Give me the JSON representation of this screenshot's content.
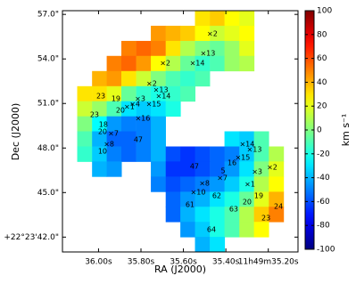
{
  "chart_data": {
    "type": "image",
    "xlabel": "RA (J2000)",
    "ylabel": "Dec (J2000)",
    "colorbar_label": "km s⁻¹",
    "colormap": "jet",
    "clim": [
      -100,
      100
    ],
    "colorbar_ticks": [
      -100,
      -80,
      -60,
      -40,
      -20,
      0,
      20,
      40,
      60,
      80,
      100
    ],
    "xlim": [
      36.17,
      35.06
    ],
    "ylim": [
      41.0,
      57.25
    ],
    "xticks": [
      {
        "value": 36.0,
        "label": "36.00s"
      },
      {
        "value": 35.8,
        "label": "35.80s"
      },
      {
        "value": 35.6,
        "label": "35.60s"
      },
      {
        "value": 35.4,
        "label": "35.40s"
      },
      {
        "value": 35.2,
        "label": "11h49m35.20s"
      }
    ],
    "yticks": [
      {
        "value": 57.0,
        "label": "57.0\""
      },
      {
        "value": 54.0,
        "label": "54.0\""
      },
      {
        "value": 51.0,
        "label": "51.0\""
      },
      {
        "value": 48.0,
        "label": "48.0\""
      },
      {
        "value": 45.0,
        "label": "45.0\""
      },
      {
        "value": 42.0,
        "label": "+22°23'42.0\""
      }
    ],
    "map": {
      "x": [
        36.135,
        36.066,
        35.996,
        35.927,
        35.858,
        35.788,
        35.719,
        35.649,
        35.58,
        35.511,
        35.441,
        35.372,
        35.302,
        35.233,
        35.163,
        35.094
      ],
      "y": [
        56.74,
        55.73,
        54.71,
        53.7,
        52.68,
        51.66,
        50.65,
        49.63,
        48.62,
        47.6,
        46.59,
        45.57,
        44.55,
        43.54,
        42.52,
        41.51
      ],
      "values": [
        [
          null,
          null,
          null,
          null,
          null,
          null,
          null,
          null,
          null,
          30,
          35,
          25,
          20,
          null,
          null,
          null
        ],
        [
          null,
          null,
          null,
          null,
          null,
          null,
          45,
          40,
          35,
          25,
          15,
          20,
          25,
          null,
          null,
          null
        ],
        [
          null,
          null,
          null,
          null,
          50,
          55,
          50,
          30,
          10,
          0,
          -5,
          5,
          20,
          null,
          null,
          null
        ],
        [
          null,
          null,
          null,
          50,
          55,
          45,
          25,
          10,
          -5,
          -15,
          -10,
          5,
          10,
          null,
          null,
          null
        ],
        [
          null,
          null,
          40,
          45,
          30,
          15,
          0,
          -10,
          -15,
          -10,
          null,
          null,
          null,
          null,
          null,
          null
        ],
        [
          null,
          30,
          30,
          20,
          -5,
          -15,
          -20,
          -15,
          -10,
          null,
          null,
          null,
          null,
          null,
          null,
          null
        ],
        [
          null,
          15,
          5,
          -10,
          -30,
          -35,
          -30,
          -20,
          null,
          null,
          null,
          null,
          null,
          null,
          null,
          null
        ],
        [
          null,
          0,
          -25,
          -45,
          -50,
          -50,
          -40,
          null,
          null,
          null,
          null,
          null,
          null,
          null,
          null,
          null
        ],
        [
          null,
          -10,
          -40,
          -55,
          -55,
          -50,
          -40,
          null,
          null,
          null,
          null,
          -30,
          -35,
          -10,
          null,
          null
        ],
        [
          null,
          -15,
          -35,
          -50,
          -55,
          -50,
          -40,
          -60,
          -65,
          -60,
          -55,
          -50,
          -35,
          -10,
          10,
          null
        ],
        [
          null,
          null,
          -40,
          -45,
          null,
          null,
          -45,
          -65,
          -65,
          -60,
          -55,
          -45,
          -30,
          0,
          20,
          null
        ],
        [
          null,
          null,
          null,
          null,
          null,
          null,
          -50,
          -60,
          -55,
          -50,
          -45,
          -35,
          -20,
          10,
          25,
          null
        ],
        [
          null,
          null,
          null,
          null,
          null,
          null,
          null,
          -55,
          -45,
          -40,
          -30,
          -20,
          -5,
          20,
          40,
          null
        ],
        [
          null,
          null,
          null,
          null,
          null,
          null,
          null,
          -55,
          -40,
          -30,
          -20,
          -10,
          10,
          35,
          50,
          null
        ],
        [
          null,
          null,
          null,
          null,
          null,
          null,
          null,
          null,
          -45,
          -35,
          -20,
          -10,
          10,
          25,
          null,
          null
        ],
        [
          null,
          null,
          null,
          null,
          null,
          null,
          null,
          null,
          null,
          -40,
          -30,
          null,
          null,
          null,
          null,
          null
        ]
      ]
    },
    "annotations": [
      {
        "text": "×2",
        "x": 35.464,
        "y": 55.69
      },
      {
        "text": "×13",
        "x": 35.485,
        "y": 54.37
      },
      {
        "text": "×2",
        "x": 35.686,
        "y": 53.71
      },
      {
        "text": "×14",
        "x": 35.535,
        "y": 53.71
      },
      {
        "text": "×2",
        "x": 35.75,
        "y": 52.33
      },
      {
        "text": "×13",
        "x": 35.707,
        "y": 51.91
      },
      {
        "text": "×14",
        "x": 35.695,
        "y": 51.49
      },
      {
        "text": "23",
        "x": 35.989,
        "y": 51.49
      },
      {
        "text": "19",
        "x": 35.918,
        "y": 51.31
      },
      {
        "text": "×3",
        "x": 35.804,
        "y": 51.31
      },
      {
        "text": "×15",
        "x": 35.741,
        "y": 50.95
      },
      {
        "text": "×4",
        "x": 35.829,
        "y": 50.95
      },
      {
        "text": "20",
        "x": 35.897,
        "y": 50.53
      },
      {
        "text": "×1",
        "x": 35.855,
        "y": 50.77
      },
      {
        "text": "23",
        "x": 36.019,
        "y": 50.24
      },
      {
        "text": "×16",
        "x": 35.792,
        "y": 49.99
      },
      {
        "text": "18",
        "x": 35.977,
        "y": 49.58
      },
      {
        "text": "20",
        "x": 35.981,
        "y": 49.1
      },
      {
        "text": "×7",
        "x": 35.93,
        "y": 48.98
      },
      {
        "text": "×8",
        "x": 35.951,
        "y": 48.26
      },
      {
        "text": "47",
        "x": 35.813,
        "y": 48.56
      },
      {
        "text": "10",
        "x": 35.981,
        "y": 47.78
      },
      {
        "text": "×14",
        "x": 35.3,
        "y": 48.26
      },
      {
        "text": "×13",
        "x": 35.266,
        "y": 47.9
      },
      {
        "text": "×15",
        "x": 35.321,
        "y": 47.36
      },
      {
        "text": "16",
        "x": 35.371,
        "y": 47.0
      },
      {
        "text": "47",
        "x": 35.548,
        "y": 46.76
      },
      {
        "text": "×2",
        "x": 35.182,
        "y": 46.7
      },
      {
        "text": "×3",
        "x": 35.253,
        "y": 46.4
      },
      {
        "text": "5",
        "x": 35.413,
        "y": 46.46
      },
      {
        "text": "×7",
        "x": 35.417,
        "y": 45.98
      },
      {
        "text": "×8",
        "x": 35.501,
        "y": 45.62
      },
      {
        "text": "×1",
        "x": 35.287,
        "y": 45.56
      },
      {
        "text": "×10",
        "x": 35.531,
        "y": 45.02
      },
      {
        "text": "62",
        "x": 35.443,
        "y": 44.78
      },
      {
        "text": "19",
        "x": 35.245,
        "y": 44.78
      },
      {
        "text": "20",
        "x": 35.3,
        "y": 44.36
      },
      {
        "text": "61",
        "x": 35.569,
        "y": 44.18
      },
      {
        "text": "63",
        "x": 35.363,
        "y": 43.88
      },
      {
        "text": "24",
        "x": 35.152,
        "y": 44.06
      },
      {
        "text": "23",
        "x": 35.211,
        "y": 43.28
      },
      {
        "text": "64",
        "x": 35.468,
        "y": 42.5
      }
    ]
  }
}
